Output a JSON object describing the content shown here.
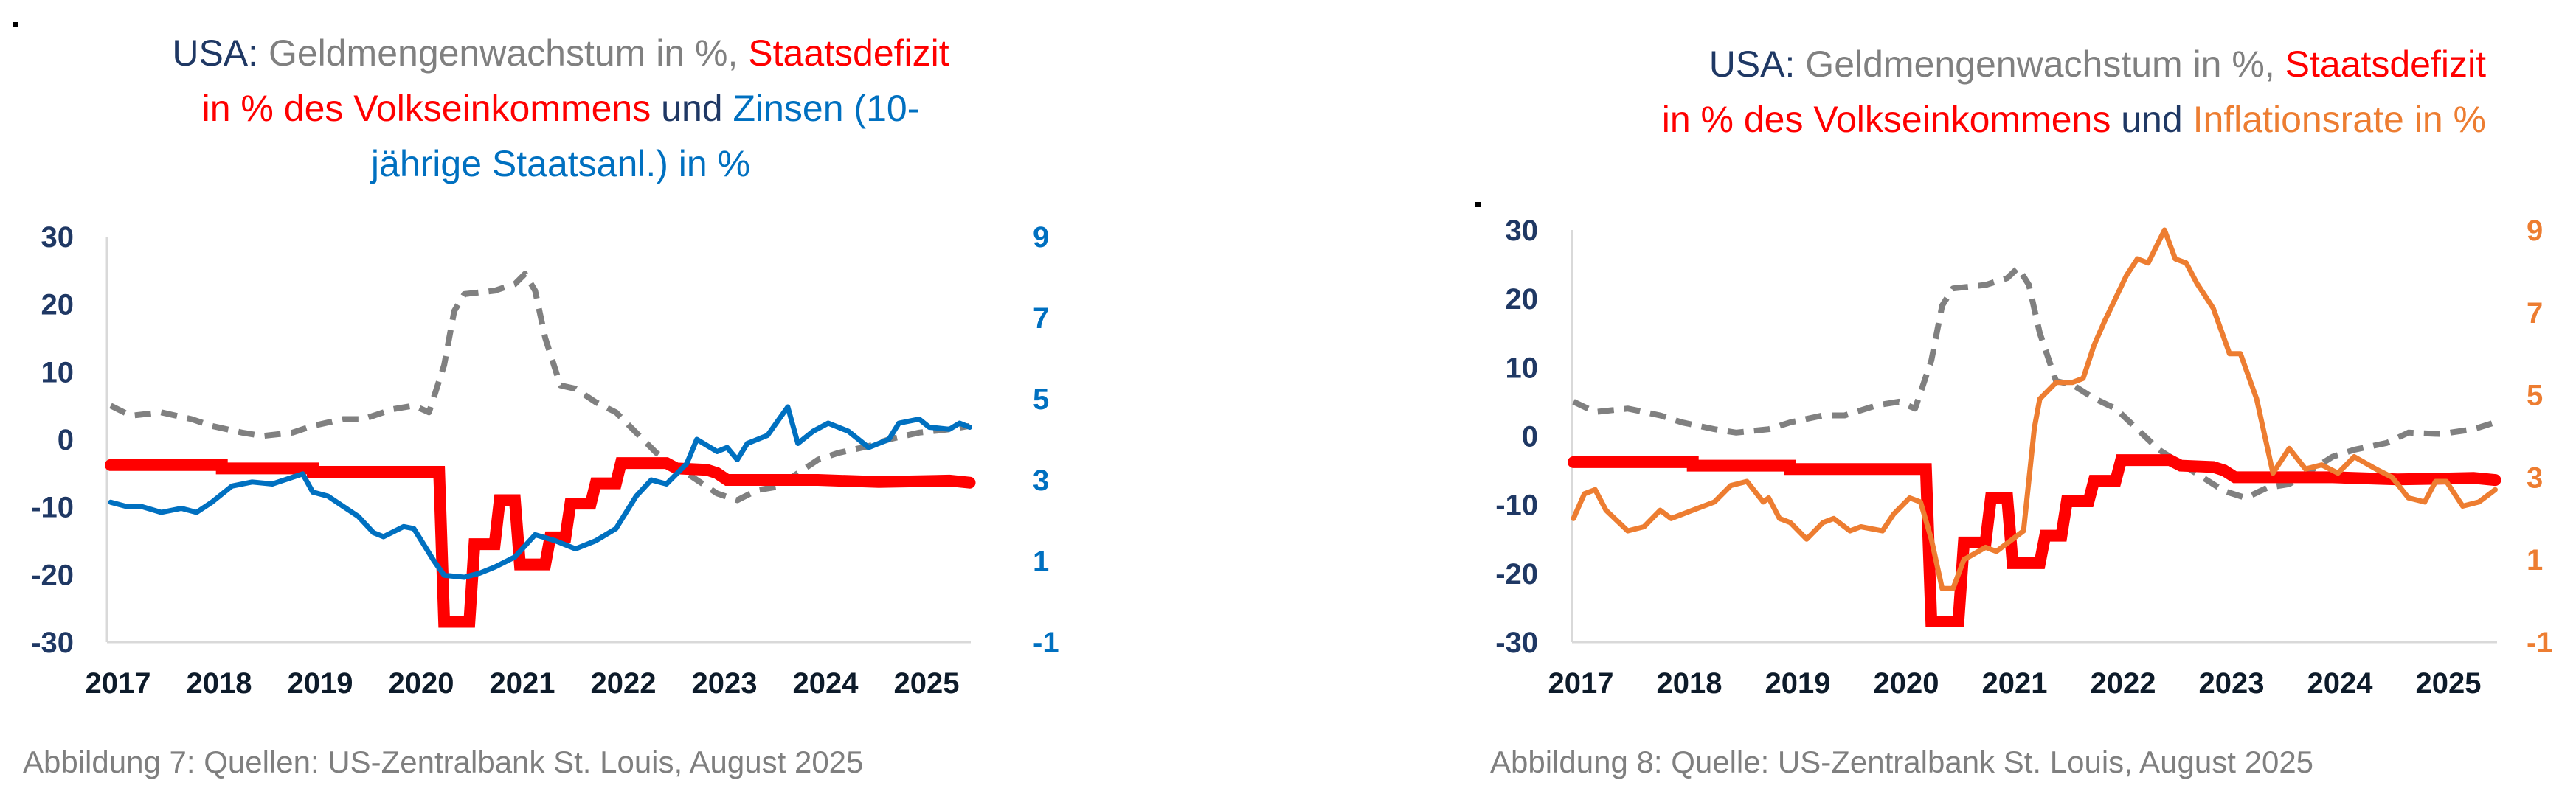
{
  "charts": [
    {
      "title_lines": [
        [
          {
            "text": "USA: ",
            "color": "#1f3864"
          },
          {
            "text": "Geldmengenwachstum in %, ",
            "color": "#808080"
          },
          {
            "text": "Staatsdefizit",
            "color": "#ff0000"
          }
        ],
        [
          {
            "text": "in % des Volkseinkommens ",
            "color": "#ff0000"
          },
          {
            "text": "und ",
            "color": "#1f3864"
          },
          {
            "text": "Zinsen (10-",
            "color": "#0070c0"
          }
        ],
        [
          {
            "text": "jährige Staatsanl.) in %",
            "color": "#0070c0"
          }
        ]
      ],
      "caption": "Abbildung 7: Quellen: US-Zentralbank St. Louis, August 2025"
    },
    {
      "title_lines": [
        [
          {
            "text": "USA: ",
            "color": "#1f3864"
          },
          {
            "text": "Geldmengenwachstum in %, ",
            "color": "#808080"
          },
          {
            "text": "Staatsdefizit",
            "color": "#ff0000"
          }
        ],
        [
          {
            "text": "in % des Volkseinkommens ",
            "color": "#ff0000"
          },
          {
            "text": "und ",
            "color": "#1f3864"
          },
          {
            "text": "Inflationsrate in %",
            "color": "#ed7d31"
          }
        ]
      ],
      "caption": "Abbildung 8: Quelle: US-Zentralbank St. Louis, August 2025"
    }
  ],
  "chart_data": [
    {
      "type": "line",
      "title": "USA: Geldmengenwachstum in %, Staatsdefizit in % des Volkseinkommens und Zinsen (10-jährige Staatsanl.) in %",
      "x_ticks": [
        "2017",
        "2018",
        "2019",
        "2020",
        "2021",
        "2022",
        "2023",
        "2024",
        "2025"
      ],
      "y_left": {
        "range": [
          -30,
          30
        ],
        "ticks": [
          "30",
          "20",
          "10",
          "0",
          "-10",
          "-20",
          "-30"
        ],
        "color": "#1f3864"
      },
      "y_right": {
        "range": [
          -1,
          9
        ],
        "ticks": [
          "9",
          "7",
          "5",
          "3",
          "1",
          "-1"
        ],
        "color": "#0070c0"
      },
      "series": [
        {
          "name": "Geldmengenwachstum",
          "axis": "left",
          "color": "#808080",
          "style": "dashed",
          "x": [
            2017.0,
            2017.2,
            2017.5,
            2017.8,
            2018.0,
            2018.3,
            2018.5,
            2018.8,
            2019.0,
            2019.3,
            2019.5,
            2019.8,
            2020.0,
            2020.15,
            2020.3,
            2020.4,
            2020.5,
            2020.8,
            2021.0,
            2021.1,
            2021.2,
            2021.3,
            2021.45,
            2021.6,
            2021.8,
            2022.0,
            2022.2,
            2022.4,
            2022.6,
            2022.8,
            2023.0,
            2023.2,
            2023.4,
            2023.6,
            2023.8,
            2024.0,
            2024.2,
            2024.5,
            2024.7,
            2025.0,
            2025.3,
            2025.5
          ],
          "y": [
            5,
            3.5,
            4,
            3,
            2,
            1,
            0.5,
            1,
            2,
            3,
            3,
            4.5,
            5,
            4,
            11,
            19,
            21.5,
            22,
            23,
            24.5,
            22,
            15,
            8,
            7.5,
            5.5,
            4,
            1,
            -2,
            -4,
            -6,
            -8,
            -9,
            -7.5,
            -7,
            -5,
            -3,
            -2,
            -1,
            0,
            1,
            1.5,
            2
          ]
        },
        {
          "name": "Staatsdefizit",
          "axis": "left",
          "color": "#ff0000",
          "style": "thick",
          "x": [
            2017.0,
            2018.1,
            2018.1,
            2019.0,
            2019.0,
            2020.25,
            2020.3,
            2020.55,
            2020.6,
            2020.8,
            2020.85,
            2021.0,
            2021.05,
            2021.3,
            2021.35,
            2021.5,
            2021.55,
            2021.75,
            2021.8,
            2022.0,
            2022.05,
            2022.5,
            2022.6,
            2022.9,
            2023.0,
            2023.1,
            2024.0,
            2024.6,
            2025.0,
            2025.3,
            2025.5
          ],
          "y": [
            -3.8,
            -3.8,
            -4.3,
            -4.3,
            -4.8,
            -4.8,
            -27,
            -27,
            -15.5,
            -15.5,
            -9,
            -9,
            -18.5,
            -18.5,
            -14.5,
            -14.5,
            -9.5,
            -9.5,
            -6.5,
            -6.5,
            -3.5,
            -3.5,
            -4.3,
            -4.5,
            -5,
            -6,
            -6,
            -6.3,
            -6.2,
            -6.1,
            -6.4
          ]
        },
        {
          "name": "Zinsen (10-jährige Staatsanl.)",
          "axis": "right",
          "color": "#0070c0",
          "style": "solid",
          "x": [
            2017.0,
            2017.15,
            2017.3,
            2017.5,
            2017.7,
            2017.85,
            2018.0,
            2018.2,
            2018.4,
            2018.6,
            2018.9,
            2019.0,
            2019.15,
            2019.3,
            2019.45,
            2019.6,
            2019.7,
            2019.9,
            2020.0,
            2020.2,
            2020.3,
            2020.5,
            2020.65,
            2020.8,
            2021.0,
            2021.2,
            2021.4,
            2021.6,
            2021.8,
            2022.0,
            2022.2,
            2022.35,
            2022.5,
            2022.7,
            2022.8,
            2023.0,
            2023.1,
            2023.2,
            2023.3,
            2023.5,
            2023.7,
            2023.8,
            2023.95,
            2024.1,
            2024.3,
            2024.5,
            2024.7,
            2024.8,
            2025.0,
            2025.1,
            2025.3,
            2025.4,
            2025.5
          ],
          "y": [
            2.45,
            2.35,
            2.35,
            2.2,
            2.3,
            2.2,
            2.45,
            2.85,
            2.95,
            2.9,
            3.15,
            2.7,
            2.6,
            2.35,
            2.1,
            1.7,
            1.6,
            1.85,
            1.8,
            1.0,
            0.65,
            0.6,
            0.7,
            0.85,
            1.1,
            1.65,
            1.5,
            1.3,
            1.5,
            1.8,
            2.6,
            3.0,
            2.9,
            3.4,
            4.0,
            3.7,
            3.8,
            3.5,
            3.9,
            4.1,
            4.8,
            3.9,
            4.2,
            4.4,
            4.2,
            3.8,
            4.0,
            4.4,
            4.5,
            4.3,
            4.25,
            4.4,
            4.3
          ]
        }
      ]
    },
    {
      "type": "line",
      "title": "USA: Geldmengenwachstum in %, Staatsdefizit in % des Volkseinkommens und Inflationsrate in %",
      "x_ticks": [
        "2017",
        "2018",
        "2019",
        "2020",
        "2021",
        "2022",
        "2023",
        "2024",
        "2025"
      ],
      "y_left": {
        "range": [
          -30,
          30
        ],
        "ticks": [
          "30",
          "20",
          "10",
          "0",
          "-10",
          "-20",
          "-30"
        ],
        "color": "#1f3864"
      },
      "y_right": {
        "range": [
          -1,
          9
        ],
        "ticks": [
          "9",
          "7",
          "5",
          "3",
          "1",
          "-1"
        ],
        "color": "#ed7d31"
      },
      "series": [
        {
          "name": "Geldmengenwachstum",
          "axis": "left",
          "color": "#808080",
          "style": "dashed",
          "x": [
            2017.0,
            2017.2,
            2017.5,
            2017.8,
            2018.0,
            2018.3,
            2018.5,
            2018.8,
            2019.0,
            2019.3,
            2019.5,
            2019.8,
            2020.0,
            2020.15,
            2020.3,
            2020.4,
            2020.5,
            2020.8,
            2021.0,
            2021.1,
            2021.2,
            2021.3,
            2021.45,
            2021.6,
            2021.8,
            2022.0,
            2022.2,
            2022.4,
            2022.6,
            2022.8,
            2023.0,
            2023.2,
            2023.4,
            2023.6,
            2023.8,
            2024.0,
            2024.2,
            2024.5,
            2024.7,
            2025.0,
            2025.3,
            2025.5
          ],
          "y": [
            5,
            3.5,
            4,
            3,
            2,
            1,
            0.5,
            1,
            2,
            3,
            3,
            4.5,
            5,
            4,
            11,
            19,
            21.5,
            22,
            23,
            24.5,
            22,
            15,
            8,
            7.5,
            5.5,
            4,
            1,
            -2,
            -4,
            -6,
            -8,
            -9,
            -7.5,
            -7,
            -5,
            -3,
            -2,
            -1,
            0.5,
            0.3,
            1,
            2
          ]
        },
        {
          "name": "Staatsdefizit",
          "axis": "left",
          "color": "#ff0000",
          "style": "thick",
          "x": [
            2017.0,
            2018.1,
            2018.1,
            2019.0,
            2019.0,
            2020.25,
            2020.3,
            2020.55,
            2020.6,
            2020.8,
            2020.85,
            2021.0,
            2021.05,
            2021.3,
            2021.35,
            2021.5,
            2021.55,
            2021.75,
            2021.8,
            2022.0,
            2022.05,
            2022.5,
            2022.6,
            2022.9,
            2023.0,
            2023.1,
            2024.0,
            2024.6,
            2025.0,
            2025.3,
            2025.5
          ],
          "y": [
            -3.8,
            -3.8,
            -4.3,
            -4.3,
            -4.8,
            -4.8,
            -27,
            -27,
            -15.5,
            -15.5,
            -9,
            -9,
            -18.5,
            -18.5,
            -14.5,
            -14.5,
            -9.5,
            -9.5,
            -6.5,
            -6.5,
            -3.5,
            -3.5,
            -4.3,
            -4.5,
            -5,
            -6,
            -6,
            -6.3,
            -6.2,
            -6.1,
            -6.4
          ]
        },
        {
          "name": "Inflationsrate",
          "axis": "right",
          "color": "#ed7d31",
          "style": "solid",
          "x": [
            2017.0,
            2017.1,
            2017.2,
            2017.3,
            2017.5,
            2017.65,
            2017.8,
            2017.9,
            2018.0,
            2018.3,
            2018.45,
            2018.6,
            2018.75,
            2018.8,
            2018.9,
            2019.0,
            2019.15,
            2019.3,
            2019.4,
            2019.55,
            2019.65,
            2019.85,
            2019.95,
            2020.1,
            2020.2,
            2020.3,
            2020.4,
            2020.5,
            2020.6,
            2020.8,
            2020.9,
            2021.0,
            2021.1,
            2021.15,
            2021.25,
            2021.3,
            2021.45,
            2021.6,
            2021.7,
            2021.8,
            2021.9,
            2022.1,
            2022.2,
            2022.3,
            2022.45,
            2022.55,
            2022.65,
            2022.75,
            2022.9,
            2023.05,
            2023.15,
            2023.3,
            2023.45,
            2023.6,
            2023.75,
            2023.9,
            2024.05,
            2024.2,
            2024.4,
            2024.55,
            2024.7,
            2024.85,
            2024.95,
            2025.05,
            2025.2,
            2025.35,
            2025.5
          ],
          "y": [
            2.0,
            2.6,
            2.7,
            2.2,
            1.7,
            1.8,
            2.2,
            2.0,
            2.1,
            2.4,
            2.8,
            2.9,
            2.4,
            2.5,
            2.0,
            1.9,
            1.5,
            1.9,
            2.0,
            1.7,
            1.8,
            1.7,
            2.1,
            2.5,
            2.4,
            1.5,
            0.3,
            0.3,
            1.0,
            1.3,
            1.2,
            1.4,
            1.6,
            1.7,
            4.2,
            4.9,
            5.3,
            5.3,
            5.4,
            6.2,
            6.8,
            7.9,
            8.3,
            8.2,
            9.0,
            8.3,
            8.2,
            7.7,
            7.1,
            6.0,
            6.0,
            4.9,
            3.1,
            3.7,
            3.2,
            3.3,
            3.1,
            3.5,
            3.2,
            3.0,
            2.5,
            2.4,
            2.9,
            2.9,
            2.3,
            2.4,
            2.7
          ]
        }
      ]
    }
  ]
}
